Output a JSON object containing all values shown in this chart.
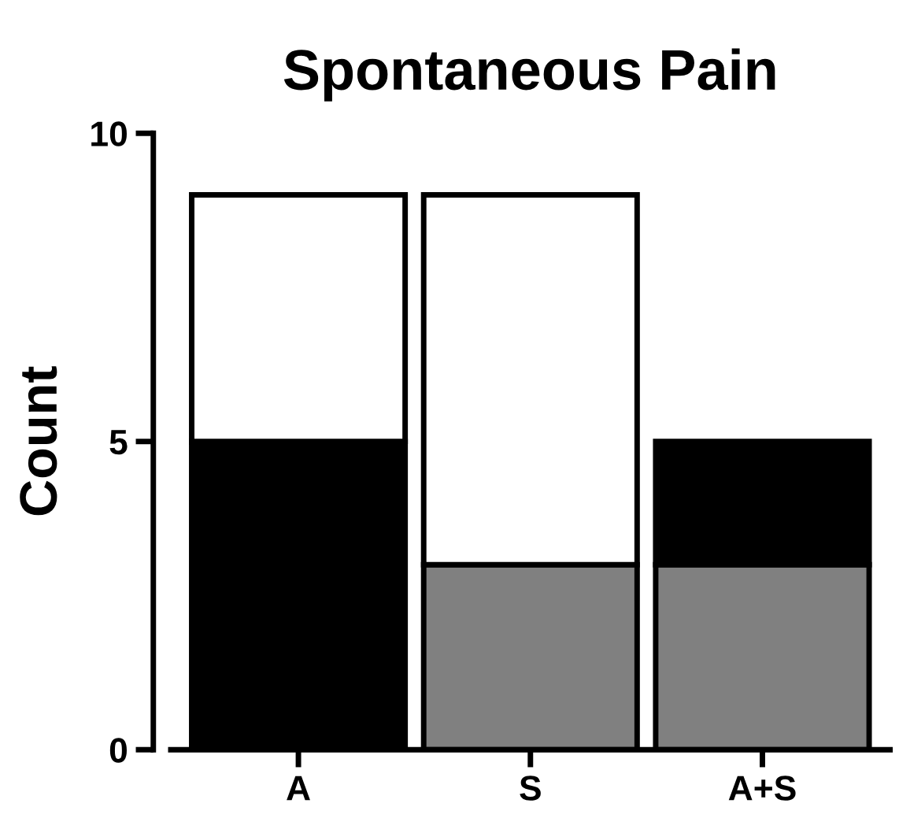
{
  "chart_data": {
    "type": "bar",
    "title": "Spontaneous Pain",
    "ylabel": "Count",
    "categories": [
      "A",
      "S",
      "A+S"
    ],
    "stacked": true,
    "series": [
      {
        "color": "#808080",
        "values": [
          null,
          3,
          3
        ]
      },
      {
        "color": "#000000",
        "values": [
          5,
          null,
          2
        ]
      },
      {
        "color": "#ffffff",
        "values": [
          4,
          6,
          null
        ]
      }
    ],
    "ylim": [
      0,
      10
    ],
    "yticks": [
      0,
      5,
      10
    ],
    "grid": false,
    "legend": false
  }
}
